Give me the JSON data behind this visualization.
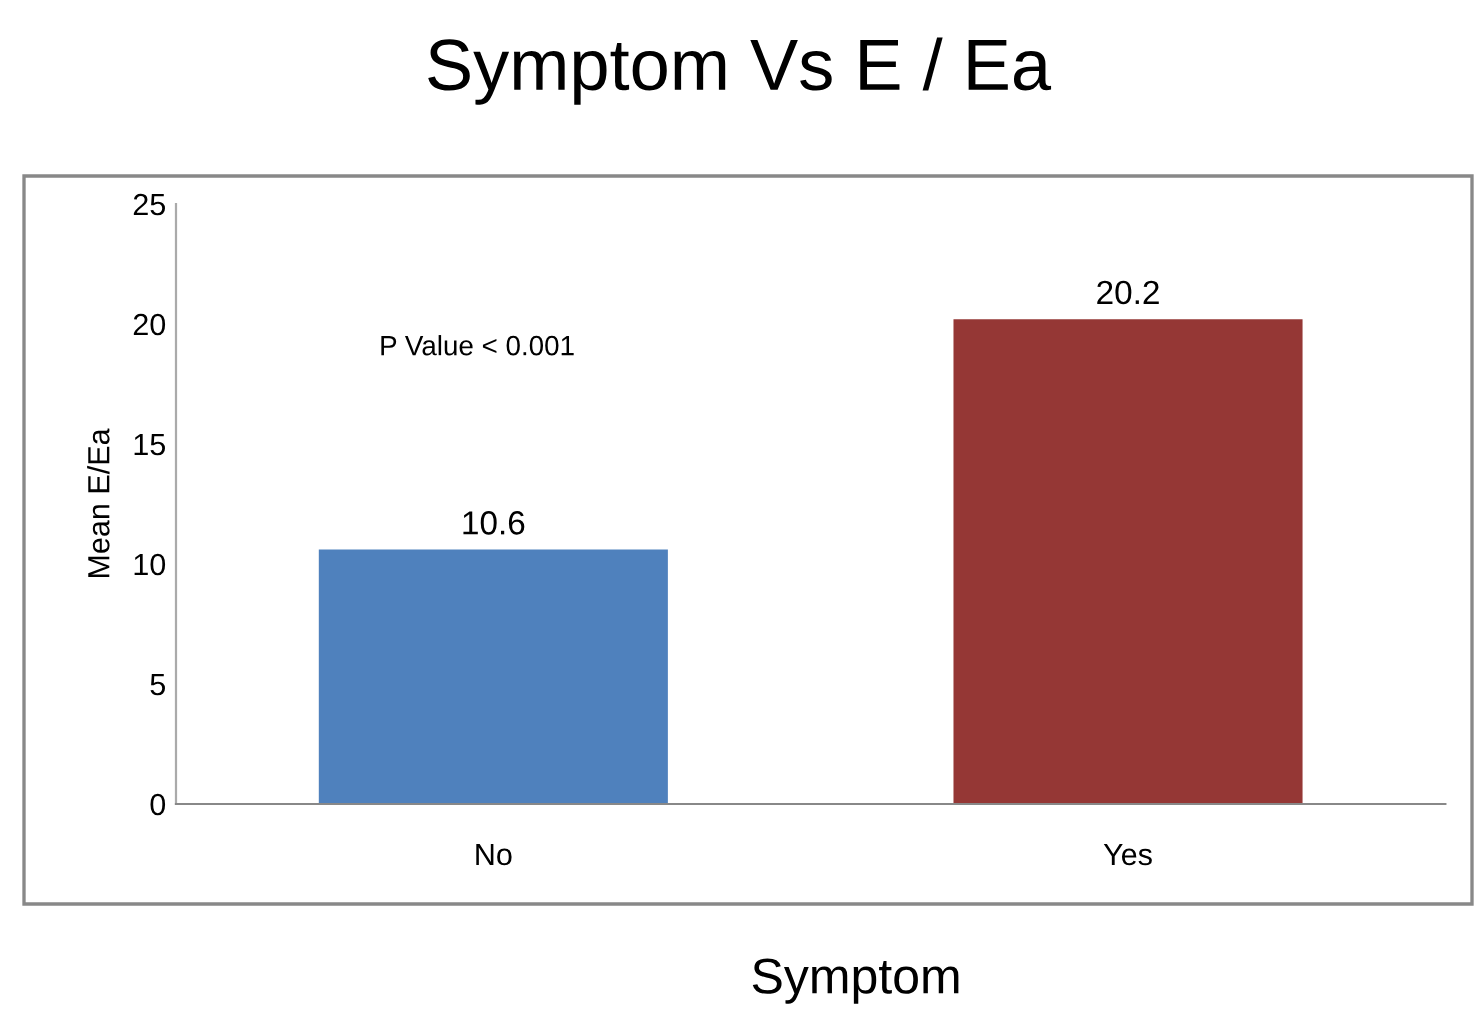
{
  "chart_data": {
    "type": "bar",
    "title": "Symptom Vs E / Ea",
    "xlabel": "Symptom",
    "ylabel": "Mean E/Ea",
    "categories": [
      "No",
      "Yes"
    ],
    "values": [
      10.6,
      20.2
    ],
    "colors": [
      "#4f81bd",
      "#953735"
    ],
    "ylim": [
      0,
      25
    ],
    "yticks": [
      0,
      5,
      10,
      15,
      20,
      25
    ],
    "data_labels": true,
    "grid": false,
    "annotations": [
      "P Value < 0.001"
    ]
  }
}
